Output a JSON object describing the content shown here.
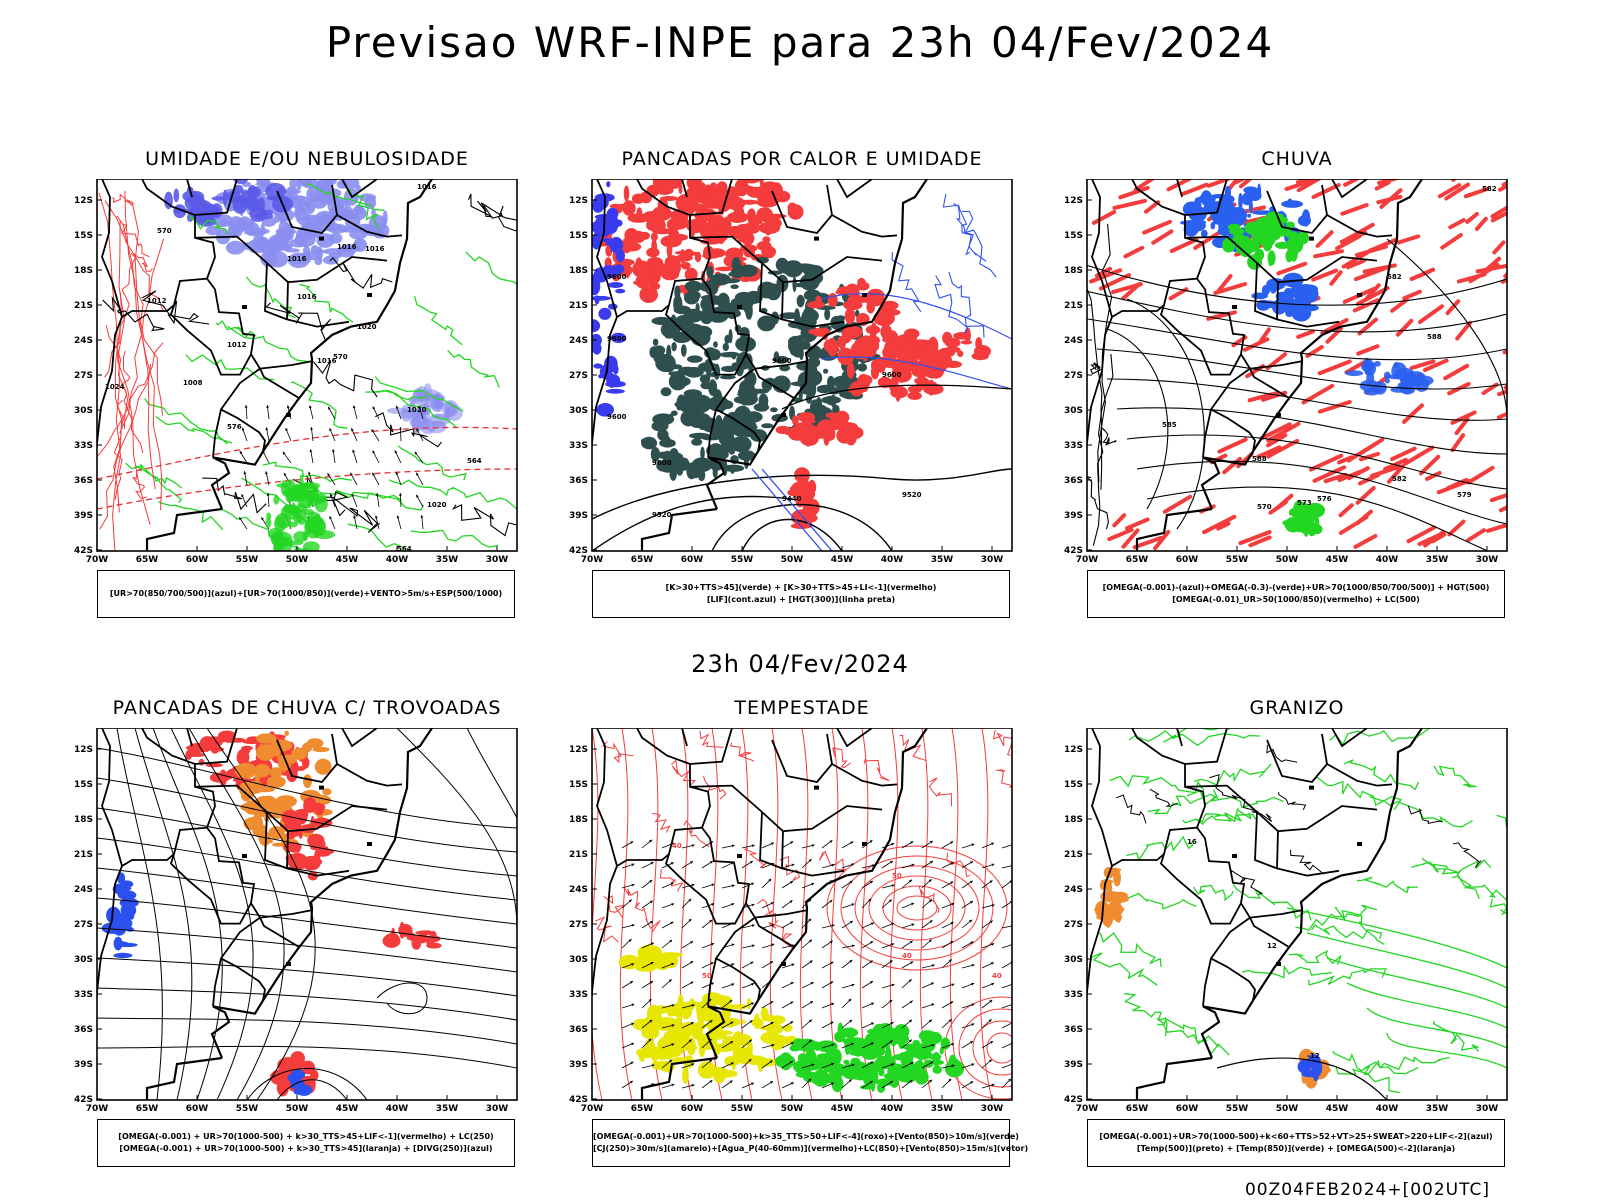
{
  "title": "Previsao WRF-INPE  para 23h 04/Fev/2024",
  "mid_title": "23h 04/Fev/2024",
  "footer": "00Z04FEB2024+[002UTC]",
  "lat_labels": [
    "12S",
    "15S",
    "18S",
    "21S",
    "24S",
    "27S",
    "30S",
    "33S",
    "36S",
    "39S",
    "42S"
  ],
  "lon_labels": [
    "70W",
    "65W",
    "60W",
    "55W",
    "50W",
    "45W",
    "40W",
    "35W",
    "30W"
  ],
  "colors": {
    "blue": "#8a8ef0",
    "green": "#22d622",
    "red": "#f43c3c",
    "dark": "#2f4f4f",
    "orange": "#f08c30",
    "yellow": "#e6e600"
  },
  "panels": [
    {
      "title": "UMIDADE E/OU NEBULOSIDADE",
      "legend": [
        "[UR>70(850/700/500)](azul)+[UR>70(1000/850)](verde)+VENTO>5m/s+ESP(500/1000)"
      ],
      "contour_labels": [
        "1016",
        "1016",
        "1016",
        "1012",
        "1016",
        "1012",
        "1016",
        "1008",
        "1020",
        "1016",
        "1020",
        "1024",
        "570",
        "576",
        "570",
        "564",
        "1020",
        "564"
      ]
    },
    {
      "title": "PANCADAS POR CALOR E UMIDADE",
      "legend": [
        "[K>30+TTS>45](verde) + [K>30+TTS>45+LI<-1](vermelho)",
        "[LIF](cont.azul) + [HGT(300)](linha preta)"
      ],
      "contour_labels": [
        "9600",
        "9600",
        "9600",
        "9600",
        "9600",
        "9600",
        "9520",
        "9440",
        "9520"
      ]
    },
    {
      "title": "CHUVA",
      "legend": [
        "[OMEGA(-0.001)-(azul)+OMEGA(-0.3)-(verde)+UR>70(1000/850/700/500)] + HGT(500)",
        "[OMEGA(-0.01)_UR>50(1000/850)(vermelho) + LC(500)"
      ],
      "contour_labels": [
        "582",
        "585",
        "588",
        "582",
        "579",
        "576",
        "573",
        "570",
        "582",
        "588"
      ]
    },
    {
      "title": "PANCADAS DE CHUVA C/ TROVOADAS",
      "legend": [
        "[OMEGA(-0.001) + UR>70(1000-500) + k>30_TTS>45+LIF<-1](vermelho) + LC(250)",
        "[OMEGA(-0.001) + UR>70(1000-500) + k>30_TTS>45](laranja) + [DIVG(250)](azul)"
      ],
      "contour_labels": []
    },
    {
      "title": "TEMPESTADE",
      "legend": [
        "[OMEGA(-0.001)+UR>70(1000-500)+k>35_TTS>50+LIF<-4](roxo)+[Vento(850)>10m/s](verde)",
        "[CJ(250)>30m/s](amarelo)+[Agua_P(40-60mm)](vermelho)+LC(850)+[Vento(850)>15m/s](vetor)"
      ],
      "contour_labels": [
        "40",
        "50",
        "40",
        "50",
        "40"
      ]
    },
    {
      "title": "GRANIZO",
      "legend": [
        "[OMEGA(-0.001)+UR>70(1000-500)+k<60+TTS>52+VT>25+SWEAT>220+LIF<-2](azul)",
        "[Temp(500)](preto) + [Temp(850)](verde) + [OMEGA(500)<-2](laranja)"
      ],
      "contour_labels": [
        "-12",
        "16",
        "12"
      ]
    }
  ]
}
